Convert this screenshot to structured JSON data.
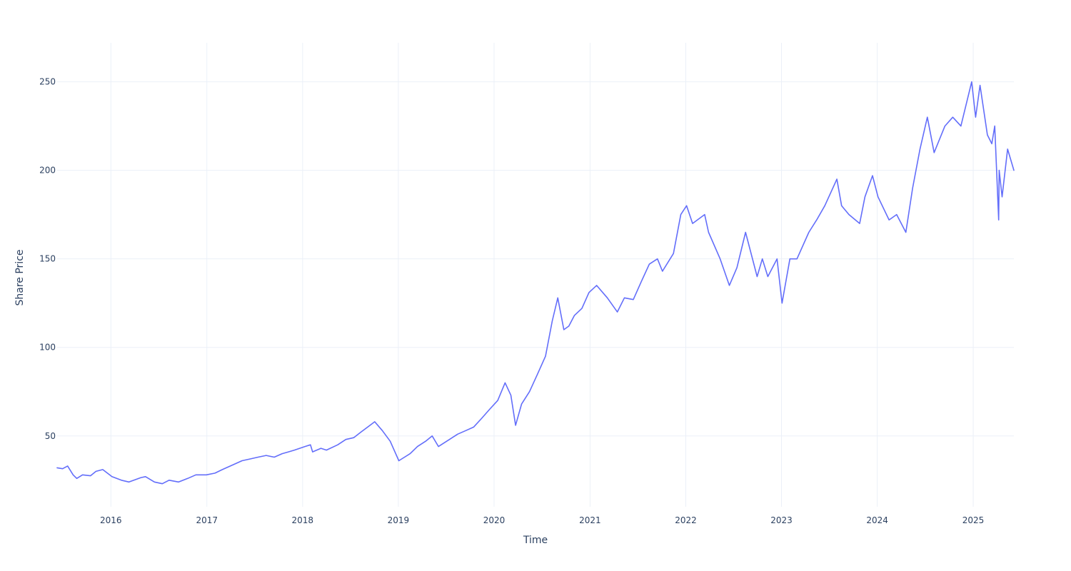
{
  "chart_data": {
    "type": "line",
    "title": "",
    "xlabel": "Time",
    "ylabel": "Share Price",
    "xlim": [
      "2015-06-10",
      "2025-06-05"
    ],
    "ylim": [
      10,
      272
    ],
    "grid": true,
    "legend": "none",
    "x_ticks": [
      "2016",
      "2017",
      "2018",
      "2019",
      "2020",
      "2021",
      "2022",
      "2023",
      "2024",
      "2025"
    ],
    "y_ticks": [
      50,
      100,
      150,
      200,
      250
    ],
    "series": [
      {
        "color": "#636efa",
        "x": [
          "2015-06-10",
          "2015-07-01",
          "2015-07-20",
          "2015-08-10",
          "2015-08-24",
          "2015-09-15",
          "2015-10-15",
          "2015-11-05",
          "2015-12-01",
          "2016-01-05",
          "2016-02-10",
          "2016-03-10",
          "2016-04-25",
          "2016-05-12",
          "2016-06-15",
          "2016-07-15",
          "2016-08-10",
          "2016-09-15",
          "2016-10-20",
          "2016-11-20",
          "2016-12-30",
          "2017-02-01",
          "2017-03-01",
          "2017-04-15",
          "2017-05-15",
          "2017-06-15",
          "2017-07-15",
          "2017-08-15",
          "2017-09-15",
          "2017-10-15",
          "2017-11-08",
          "2017-12-01",
          "2018-01-10",
          "2018-01-31",
          "2018-02-08",
          "2018-03-12",
          "2018-04-02",
          "2018-05-15",
          "2018-06-15",
          "2018-07-15",
          "2018-08-10",
          "2018-09-15",
          "2018-10-03",
          "2018-11-01",
          "2018-12-01",
          "2019-01-03",
          "2019-02-15",
          "2019-03-15",
          "2019-04-15",
          "2019-05-10",
          "2019-06-03",
          "2019-07-15",
          "2019-08-15",
          "2019-09-15",
          "2019-10-15",
          "2019-11-15",
          "2019-12-15",
          "2020-01-15",
          "2020-02-12",
          "2020-03-05",
          "2020-03-23",
          "2020-04-15",
          "2020-05-15",
          "2020-06-15",
          "2020-07-15",
          "2020-08-10",
          "2020-08-31",
          "2020-09-23",
          "2020-10-12",
          "2020-11-02",
          "2020-12-01",
          "2020-12-28",
          "2021-01-26",
          "2021-03-08",
          "2021-04-15",
          "2021-05-12",
          "2021-06-15",
          "2021-07-15",
          "2021-08-15",
          "2021-09-15",
          "2021-10-04",
          "2021-11-15",
          "2021-12-13",
          "2022-01-04",
          "2022-01-27",
          "2022-03-14",
          "2022-03-29",
          "2022-05-12",
          "2022-06-16",
          "2022-07-15",
          "2022-08-17",
          "2022-09-30",
          "2022-10-20",
          "2022-11-10",
          "2022-12-15",
          "2023-01-03",
          "2023-02-02",
          "2023-03-01",
          "2023-04-15",
          "2023-05-15",
          "2023-06-15",
          "2023-07-31",
          "2023-08-18",
          "2023-09-15",
          "2023-10-26",
          "2023-11-15",
          "2023-12-14",
          "2024-01-04",
          "2024-02-15",
          "2024-03-15",
          "2024-04-19",
          "2024-05-15",
          "2024-06-12",
          "2024-07-10",
          "2024-08-05",
          "2024-09-15",
          "2024-10-15",
          "2024-11-15",
          "2024-12-26",
          "2025-01-10",
          "2025-01-27",
          "2025-02-24",
          "2025-03-13",
          "2025-03-24",
          "2025-04-08",
          "2025-04-10",
          "2025-04-21",
          "2025-05-12",
          "2025-06-05"
        ],
        "y": [
          32,
          31.5,
          33,
          28,
          26,
          28,
          27.5,
          30,
          31,
          27,
          25,
          24,
          26.5,
          27,
          24,
          23,
          25,
          24,
          26,
          28,
          28,
          29,
          31,
          34,
          36,
          37,
          38,
          39,
          38,
          40,
          41,
          42,
          44,
          45,
          41,
          43,
          42,
          45,
          48,
          49,
          52,
          56,
          58,
          53,
          47,
          36,
          40,
          44,
          47,
          50,
          44,
          48,
          51,
          53,
          55,
          60,
          65,
          70,
          80,
          73,
          56,
          68,
          75,
          85,
          95,
          115,
          128,
          110,
          112,
          118,
          122,
          131,
          135,
          128,
          120,
          128,
          127,
          137,
          147,
          150,
          143,
          153,
          175,
          180,
          170,
          175,
          165,
          150,
          135,
          145,
          165,
          140,
          150,
          140,
          150,
          125,
          150,
          150,
          165,
          172,
          180,
          195,
          180,
          175,
          170,
          185,
          197,
          185,
          172,
          175,
          165,
          190,
          212,
          230,
          210,
          225,
          230,
          225,
          250,
          230,
          248,
          220,
          215,
          225,
          172,
          200,
          185,
          212,
          200
        ]
      }
    ]
  }
}
